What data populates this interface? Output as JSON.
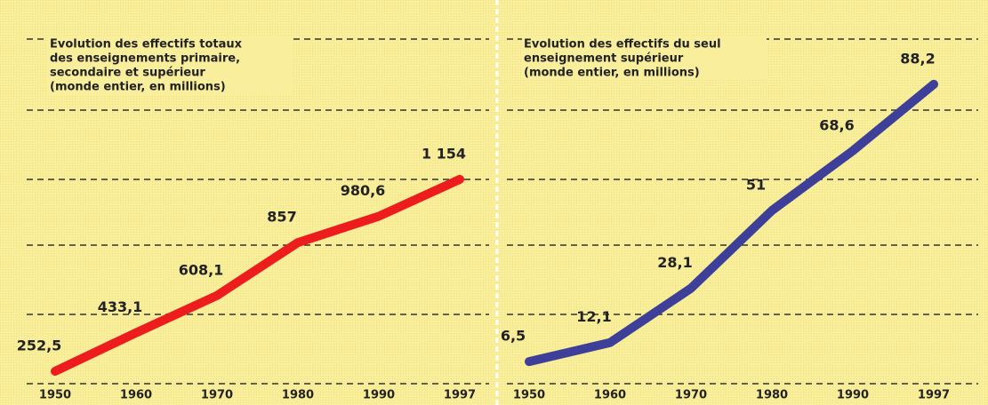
{
  "chart_data": [
    {
      "type": "line",
      "title": [
        "Evolution des effectifs totaux",
        "des enseignements primaire,",
        "secondaire et supérieur",
        "(monde entier, en millions)"
      ],
      "categories": [
        "1950",
        "1960",
        "1970",
        "1980",
        "1990",
        "1997"
      ],
      "series": [
        {
          "color": "#ee1d1d",
          "values": [
            252.5,
            433.1,
            608.1,
            857,
            980.6,
            1154
          ],
          "value_labels": [
            "252,5",
            "433,1",
            "608,1",
            "857",
            "980,6",
            "1 154"
          ]
        }
      ],
      "ylim": [
        194,
        1813
      ]
    },
    {
      "type": "line",
      "title": [
        "Evolution des effectifs du seul",
        "enseignement supérieur",
        "(monde entier, en millions)"
      ],
      "categories": [
        "1950",
        "1960",
        "1970",
        "1980",
        "1990",
        "1997"
      ],
      "series": [
        {
          "color": "#3d3f99",
          "values": [
            6.5,
            12.1,
            28.1,
            51,
            68.6,
            88.2
          ],
          "value_labels": [
            "6,5",
            "12,1",
            "28,1",
            "51",
            "68,6",
            "88,2"
          ]
        }
      ],
      "ylim": [
        0,
        101.5
      ]
    }
  ]
}
